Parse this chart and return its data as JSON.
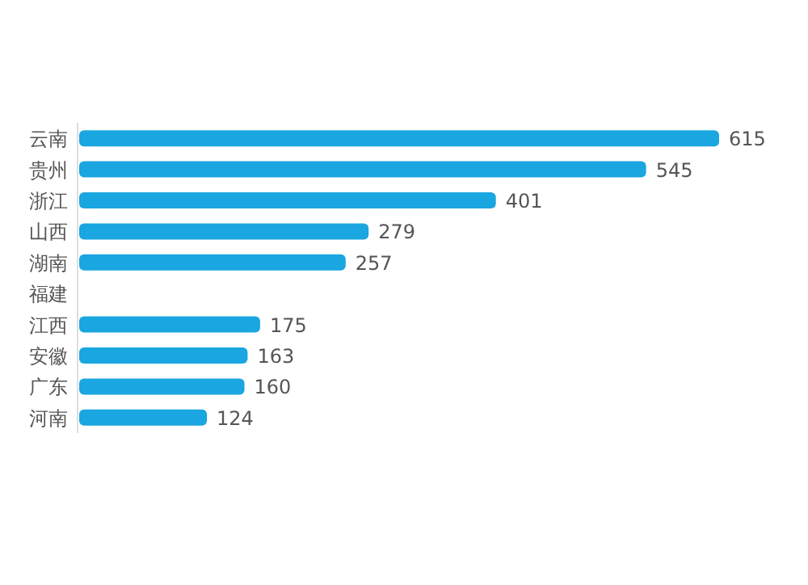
{
  "chart_data": {
    "type": "bar",
    "orientation": "horizontal",
    "categories": [
      "云南",
      "贵州",
      "浙江",
      "山西",
      "湖南",
      "福建",
      "江西",
      "安徽",
      "广东",
      "河南"
    ],
    "values": [
      615,
      545,
      401,
      279,
      257,
      null,
      175,
      163,
      160,
      124
    ],
    "value_labels": [
      "615",
      "545",
      "401",
      "279",
      "257",
      null,
      "175",
      "163",
      "160",
      "124"
    ],
    "color": "#1aa6e0"
  }
}
